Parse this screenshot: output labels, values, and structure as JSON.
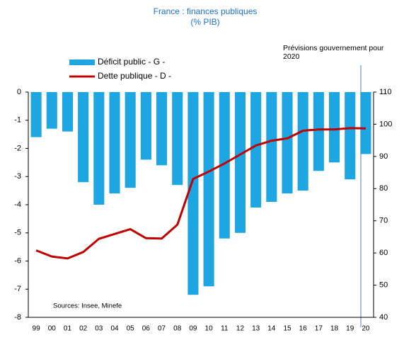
{
  "chart_data": {
    "type": "bar",
    "title": "France :  finances publiques",
    "subtitle": "(% PIB)",
    "annotation": "Prévisions gouvernement pour 2020",
    "source": "Sources: Insee, Minefe",
    "categories": [
      "99",
      "00",
      "01",
      "02",
      "03",
      "04",
      "05",
      "06",
      "07",
      "08",
      "09",
      "10",
      "11",
      "12",
      "13",
      "14",
      "15",
      "16",
      "17",
      "18",
      "19",
      "20"
    ],
    "series": [
      {
        "name": "Déficit public - G -",
        "color": "#1ea6e2",
        "type": "bar",
        "values": [
          -1.6,
          -1.3,
          -1.4,
          -3.2,
          -4.0,
          -3.6,
          -3.4,
          -2.4,
          -2.6,
          -3.3,
          -7.2,
          -6.9,
          -5.2,
          -5.0,
          -4.1,
          -3.9,
          -3.6,
          -3.5,
          -2.8,
          -2.5,
          -3.1,
          -2.2
        ]
      },
      {
        "name": "Dette publique - D -",
        "color": "#c00000",
        "type": "line",
        "axis": "y2",
        "values": [
          60.8,
          58.9,
          58.3,
          60.3,
          64.4,
          65.9,
          67.4,
          64.6,
          64.5,
          68.8,
          83.0,
          85.3,
          87.8,
          90.6,
          93.4,
          94.9,
          95.6,
          98.0,
          98.4,
          98.4,
          98.8,
          98.7
        ]
      }
    ],
    "ylim": [
      -8,
      0
    ],
    "yticks": [
      0,
      -1,
      -2,
      -3,
      -4,
      -5,
      -6,
      -7,
      -8
    ],
    "y2lim": [
      40,
      110
    ],
    "y2ticks": [
      110,
      100,
      90,
      80,
      70,
      60,
      50,
      40
    ],
    "grid": false
  }
}
